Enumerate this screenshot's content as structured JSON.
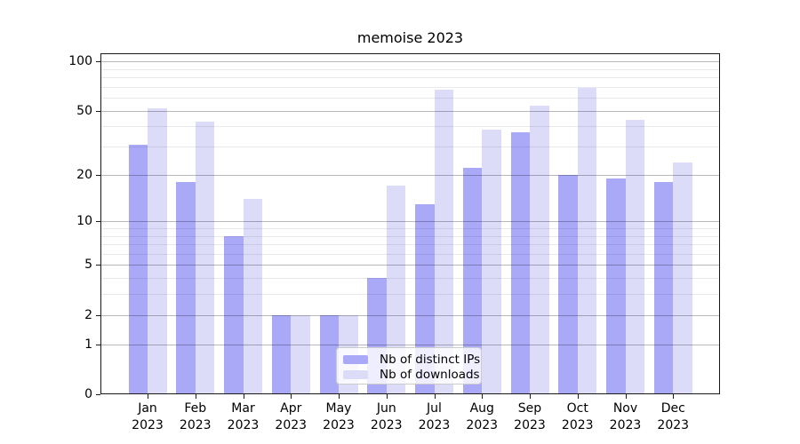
{
  "chart_data": {
    "type": "bar",
    "title": "memoise 2023",
    "categories": [
      "Jan",
      "Feb",
      "Mar",
      "Apr",
      "May",
      "Jun",
      "Jul",
      "Aug",
      "Sep",
      "Oct",
      "Nov",
      "Dec"
    ],
    "category_year": "2023",
    "series": [
      {
        "name": "Nb of distinct IPs",
        "color": "#a9a9f7",
        "values": [
          31,
          18,
          8,
          2,
          2,
          4,
          13,
          22,
          37,
          20,
          19,
          18
        ]
      },
      {
        "name": "Nb of downloads",
        "color": "#dcdcf8",
        "values": [
          52,
          43,
          14,
          2,
          2,
          17,
          67,
          38,
          54,
          69,
          44,
          24
        ]
      }
    ],
    "yscale": "log1p",
    "major_yticks": [
      100,
      50,
      20,
      10,
      5,
      2,
      1,
      0
    ],
    "minor_yticks": [
      3,
      4,
      6,
      7,
      8,
      9,
      30,
      40,
      60,
      70,
      80,
      90
    ],
    "ylim": [
      0,
      112
    ],
    "grid": true,
    "legend_position": "lower center",
    "colors": {
      "major_grid": "#b8b8bc",
      "minor_grid": "#e9e9ed",
      "axis": "#1a1a1a",
      "text": "#000000"
    }
  }
}
